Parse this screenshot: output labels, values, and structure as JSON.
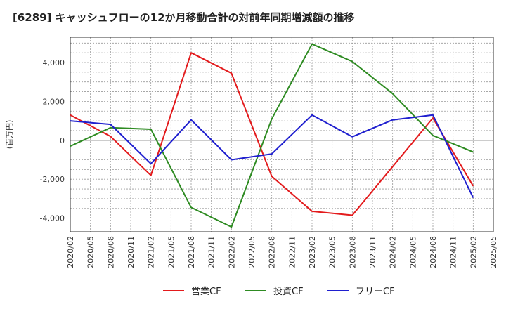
{
  "chart_data": {
    "type": "line",
    "title": "[6289]  キャッシュフローの12か月移動合計の対前年同期増減額の推移",
    "ylabel": "(百万円)",
    "xlabel": "",
    "ylim": [
      -4700,
      5300
    ],
    "yticks": [
      4000,
      2000,
      0,
      -2000,
      -4000
    ],
    "ytick_labels": [
      "4,000",
      "2,000",
      "0",
      "-2,000",
      "-4,000"
    ],
    "x_labels": [
      "2020/02",
      "2020/05",
      "2020/08",
      "2020/11",
      "2021/02",
      "2021/05",
      "2021/08",
      "2021/11",
      "2022/02",
      "2022/05",
      "2022/08",
      "2022/11",
      "2023/02",
      "2023/05",
      "2023/08",
      "2023/11",
      "2024/02",
      "2024/05",
      "2024/08",
      "2024/11",
      "2025/02",
      "2025/05"
    ],
    "grid": true,
    "legend_position": "bottom",
    "series": [
      {
        "name": "営業CF",
        "color": "#e31a1c",
        "points": [
          [
            0,
            1300
          ],
          [
            2,
            200
          ],
          [
            4,
            -1800
          ],
          [
            6,
            4500
          ],
          [
            8,
            3450
          ],
          [
            10,
            -1850
          ],
          [
            12,
            -3650
          ],
          [
            14,
            -3850
          ],
          [
            18,
            1150
          ],
          [
            20,
            -2350
          ]
        ]
      },
      {
        "name": "投資CF",
        "color": "#2e8b22",
        "points": [
          [
            0,
            -300
          ],
          [
            2,
            650
          ],
          [
            4,
            570
          ],
          [
            6,
            -3450
          ],
          [
            8,
            -4450
          ],
          [
            10,
            1100
          ],
          [
            12,
            4950
          ],
          [
            14,
            4050
          ],
          [
            16,
            2400
          ],
          [
            18,
            250
          ],
          [
            20,
            -600
          ]
        ]
      },
      {
        "name": "フリーCF",
        "color": "#1f1fcf",
        "points": [
          [
            0,
            1000
          ],
          [
            2,
            820
          ],
          [
            4,
            -1200
          ],
          [
            6,
            1050
          ],
          [
            8,
            -1000
          ],
          [
            10,
            -700
          ],
          [
            12,
            1300
          ],
          [
            14,
            180
          ],
          [
            16,
            1050
          ],
          [
            18,
            1300
          ],
          [
            20,
            -2950
          ]
        ]
      }
    ]
  }
}
